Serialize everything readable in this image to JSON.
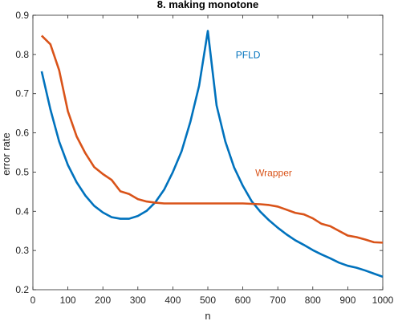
{
  "chart_data": {
    "type": "line",
    "title": "8. making monotone",
    "xlabel": "n",
    "ylabel": "error rate",
    "xlim": [
      0,
      1000
    ],
    "ylim": [
      0.2,
      0.9
    ],
    "xticks": [
      "0",
      "100",
      "200",
      "300",
      "400",
      "500",
      "600",
      "700",
      "800",
      "900",
      "1000"
    ],
    "yticks": [
      "0.2",
      "0.3",
      "0.4",
      "0.5",
      "0.6",
      "0.7",
      "0.8",
      "0.9"
    ],
    "grid": false,
    "box": true,
    "series": [
      {
        "name": "PFLD",
        "color": "#0072BD",
        "x": [
          25,
          50,
          75,
          100,
          125,
          150,
          175,
          200,
          225,
          250,
          275,
          300,
          325,
          350,
          375,
          400,
          425,
          450,
          475,
          500,
          525,
          550,
          575,
          600,
          625,
          650,
          675,
          700,
          725,
          750,
          775,
          800,
          825,
          850,
          875,
          900,
          925,
          950,
          975,
          1000
        ],
        "y": [
          0.757,
          0.66,
          0.578,
          0.518,
          0.474,
          0.44,
          0.414,
          0.397,
          0.385,
          0.381,
          0.381,
          0.388,
          0.401,
          0.423,
          0.455,
          0.5,
          0.553,
          0.628,
          0.72,
          0.86,
          0.67,
          0.578,
          0.512,
          0.465,
          0.426,
          0.399,
          0.377,
          0.358,
          0.341,
          0.326,
          0.314,
          0.301,
          0.29,
          0.28,
          0.269,
          0.261,
          0.256,
          0.249,
          0.241,
          0.233
        ]
      },
      {
        "name": "Wrapper",
        "color": "#D95319",
        "x": [
          25,
          50,
          75,
          100,
          125,
          150,
          175,
          200,
          225,
          250,
          275,
          300,
          325,
          350,
          375,
          400,
          425,
          450,
          475,
          500,
          525,
          550,
          575,
          600,
          625,
          650,
          675,
          700,
          725,
          750,
          775,
          800,
          825,
          850,
          875,
          900,
          925,
          950,
          975,
          1000
        ],
        "y": [
          0.848,
          0.826,
          0.76,
          0.655,
          0.591,
          0.548,
          0.513,
          0.495,
          0.48,
          0.451,
          0.444,
          0.431,
          0.425,
          0.422,
          0.42,
          0.42,
          0.42,
          0.42,
          0.42,
          0.42,
          0.42,
          0.42,
          0.42,
          0.42,
          0.419,
          0.418,
          0.416,
          0.412,
          0.404,
          0.396,
          0.392,
          0.382,
          0.368,
          0.362,
          0.35,
          0.338,
          0.334,
          0.328,
          0.321,
          0.32
        ]
      }
    ],
    "annotations": [
      {
        "text": "PFLD",
        "x": 615,
        "y": 0.79,
        "color": "#0072BD"
      },
      {
        "text": "Wrapper",
        "x": 688,
        "y": 0.49,
        "color": "#D95319"
      }
    ]
  }
}
